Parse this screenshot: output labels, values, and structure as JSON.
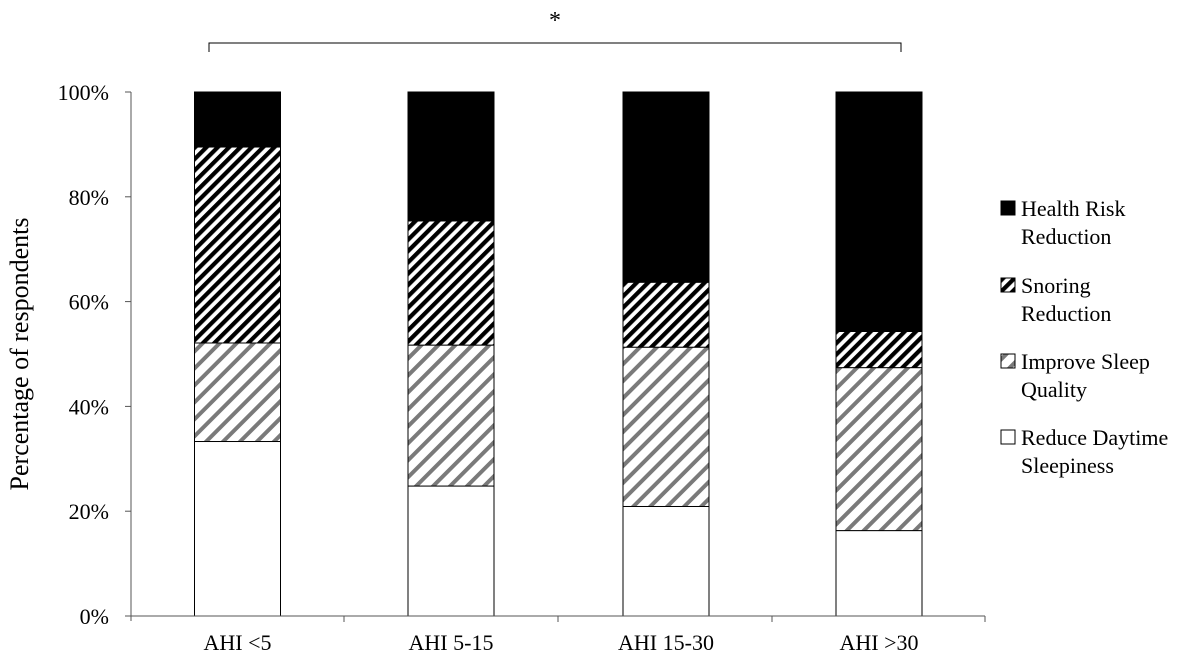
{
  "chart_data": {
    "type": "bar",
    "stacked": true,
    "categories": [
      "AHI <5",
      "AHI 5-15",
      "AHI 15-30",
      "AHI >30"
    ],
    "series": [
      {
        "name": "Reduce Daytime Sleepiness",
        "values": [
          33.3,
          24.8,
          20.9,
          16.3
        ],
        "pattern": "none",
        "color": "#ffffff"
      },
      {
        "name": "Improve Sleep Quality",
        "values": [
          18.8,
          26.9,
          30.4,
          31.1
        ],
        "pattern": "light-diagonal",
        "color": "#777777"
      },
      {
        "name": "Snoring Reduction",
        "values": [
          37.4,
          23.7,
          12.4,
          6.9
        ],
        "pattern": "dense-diagonal",
        "color": "#222222"
      },
      {
        "name": "Health Risk Reduction",
        "values": [
          10.5,
          24.6,
          36.3,
          45.7
        ],
        "pattern": "solid",
        "color": "#000000"
      }
    ],
    "legend_order": [
      "Health Risk Reduction",
      "Snoring Reduction",
      "Improve Sleep Quality",
      "Reduce Daytime Sleepiness"
    ],
    "legend_lines": [
      [
        "Health Risk",
        "Reduction"
      ],
      [
        "Snoring",
        "Reduction"
      ],
      [
        "Improve Sleep",
        "Quality"
      ],
      [
        "Reduce Daytime",
        "Sleepiness"
      ]
    ],
    "ylabel": "Percentage of respondents",
    "xlabel": "",
    "ylim": [
      0,
      100
    ],
    "yticks": [
      0,
      20,
      40,
      60,
      80,
      100
    ],
    "ytick_labels": [
      "0%",
      "20%",
      "40%",
      "60%",
      "80%",
      "100%"
    ],
    "significance": {
      "label": "*",
      "from_category": "AHI <5",
      "to_category": "AHI >30"
    },
    "grid": false,
    "legend_position": "right"
  }
}
